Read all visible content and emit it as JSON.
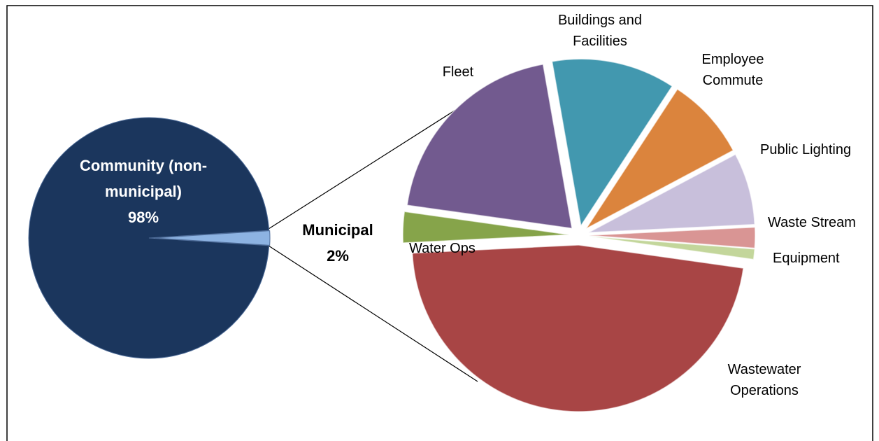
{
  "chart_data": [
    {
      "type": "pie",
      "categories": [
        "Community (non-municipal)",
        "Municipal"
      ],
      "values": [
        98,
        2
      ],
      "value_labels": [
        "98%",
        "2%"
      ],
      "colors": [
        "#1b365d",
        "#8db3e2"
      ]
    },
    {
      "type": "pie",
      "categories": [
        "Wastewater Operations",
        "Water Ops",
        "Fleet",
        "Buildings and Facilities",
        "Employee Commute",
        "Public Lighting",
        "Waste Stream",
        "Equipment"
      ],
      "values": [
        47,
        3,
        20,
        12,
        8,
        7,
        2,
        1
      ],
      "colors": [
        "#a84545",
        "#86a44a",
        "#725a8f",
        "#4298af",
        "#db843d",
        "#c8bfdb",
        "#d99594",
        "#c3d69b"
      ]
    }
  ]
}
